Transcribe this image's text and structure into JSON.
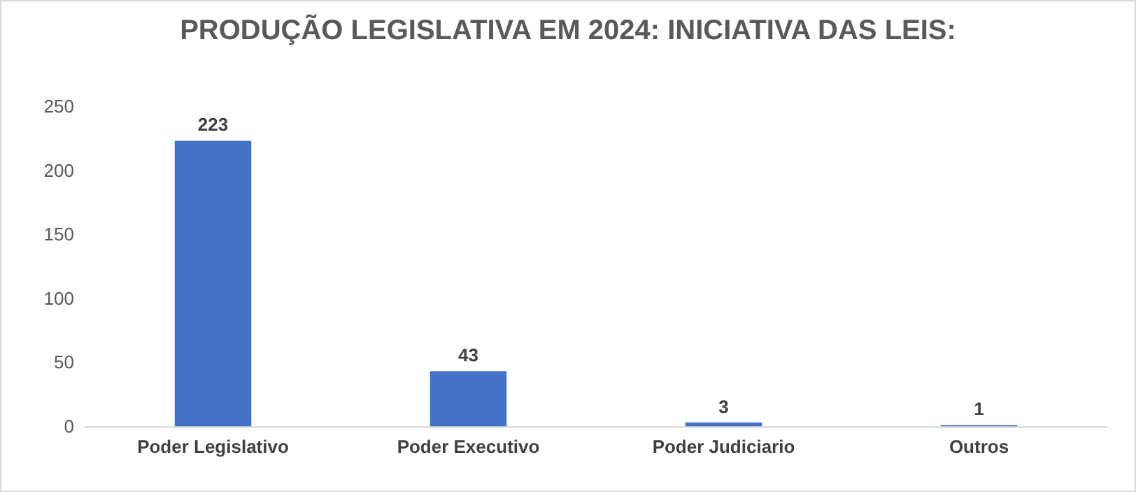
{
  "chart_data": {
    "type": "bar",
    "title": "PRODUÇÃO LEGISLATIVA EM 2024: INICIATIVA DAS LEIS:",
    "categories": [
      "Poder Legislativo",
      "Poder Executivo",
      "Poder Judiciario",
      "Outros"
    ],
    "values": [
      223,
      43,
      3,
      1
    ],
    "color": "#4472c4",
    "ylim": [
      0,
      250
    ],
    "yticks": [
      0,
      50,
      100,
      150,
      200,
      250
    ],
    "grid": false,
    "data_labels": true
  }
}
